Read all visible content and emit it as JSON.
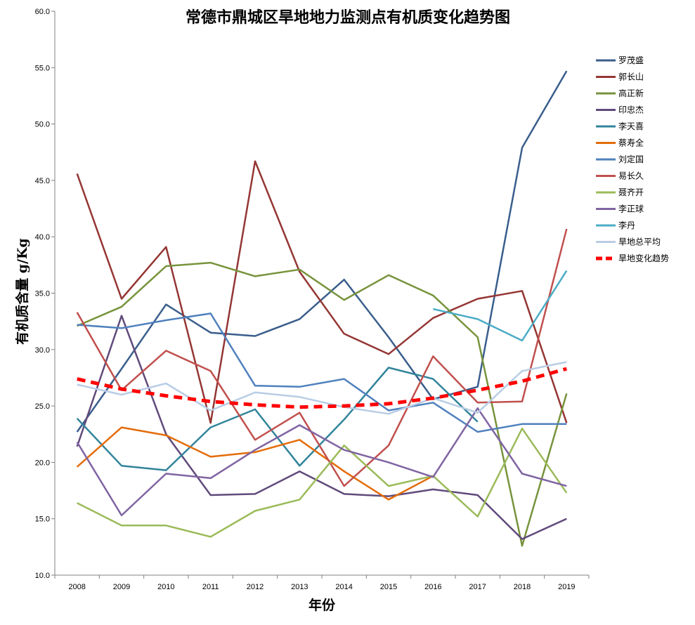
{
  "chart_data": {
    "type": "line",
    "title": "常德市鼎城区旱地地力监测点有机质变化趋势图",
    "xlabel": "年份",
    "ylabel": "有机质含量  g/Kg",
    "categories": [
      "2008",
      "2009",
      "2010",
      "2011",
      "2012",
      "2013",
      "2014",
      "2015",
      "2016",
      "2017",
      "2018",
      "2019"
    ],
    "ylim": [
      10,
      60
    ],
    "yticks": [
      "10.0",
      "15.0",
      "20.0",
      "25.0",
      "30.0",
      "35.0",
      "40.0",
      "45.0",
      "50.0",
      "55.0",
      "60.0"
    ],
    "grid": false,
    "legend_position": "right",
    "series": [
      {
        "name": "罗茂盛",
        "color": "#3A5E8C",
        "dashed": false,
        "values": [
          22.7,
          28.3,
          34.0,
          31.5,
          31.2,
          32.7,
          36.2,
          31.1,
          25.6,
          26.7,
          47.9,
          54.7
        ]
      },
      {
        "name": "郭长山",
        "color": "#943634",
        "dashed": false,
        "values": [
          45.6,
          34.5,
          39.1,
          23.5,
          46.7,
          36.9,
          31.4,
          29.6,
          32.8,
          34.5,
          35.2,
          23.5
        ]
      },
      {
        "name": "高正新",
        "color": "#77933C",
        "dashed": false,
        "values": [
          32.1,
          33.8,
          37.4,
          37.7,
          36.5,
          37.1,
          34.4,
          36.6,
          34.8,
          31.1,
          12.6,
          26.1
        ]
      },
      {
        "name": "印忠杰",
        "color": "#604A7B",
        "dashed": false,
        "values": [
          21.4,
          33.0,
          22.5,
          17.1,
          17.2,
          19.2,
          17.2,
          17.0,
          17.6,
          17.1,
          13.2,
          15.0
        ]
      },
      {
        "name": "李天喜",
        "color": "#31849B",
        "dashed": false,
        "values": [
          23.9,
          19.7,
          19.3,
          23.1,
          24.7,
          19.7,
          23.8,
          28.4,
          27.4,
          23.6,
          null,
          null
        ]
      },
      {
        "name": "蔡寿全",
        "color": "#E46C0A",
        "dashed": false,
        "values": [
          19.6,
          23.1,
          22.4,
          20.5,
          20.9,
          22.0,
          19.2,
          16.7,
          18.8,
          null,
          null,
          null
        ]
      },
      {
        "name": "刘定国",
        "color": "#4F81BD",
        "dashed": false,
        "values": [
          32.2,
          31.9,
          32.6,
          33.2,
          26.8,
          26.7,
          27.4,
          24.6,
          25.3,
          22.7,
          23.4,
          23.4
        ]
      },
      {
        "name": "易长久",
        "color": "#C0504D",
        "dashed": false,
        "values": [
          33.3,
          26.4,
          29.9,
          28.1,
          22.0,
          24.4,
          17.9,
          21.5,
          29.4,
          25.3,
          25.4,
          40.7
        ]
      },
      {
        "name": "聂齐开",
        "color": "#9BBB59",
        "dashed": false,
        "values": [
          16.4,
          14.4,
          14.4,
          13.4,
          15.7,
          16.7,
          21.5,
          17.9,
          18.8,
          15.2,
          23.0,
          17.3
        ]
      },
      {
        "name": "李正球",
        "color": "#8064A2",
        "dashed": false,
        "values": [
          21.8,
          15.3,
          19.0,
          18.6,
          21.1,
          23.3,
          21.1,
          20.0,
          18.7,
          24.8,
          19.0,
          17.9
        ]
      },
      {
        "name": "李丹",
        "color": "#4BACC6",
        "dashed": false,
        "values": [
          null,
          null,
          null,
          null,
          null,
          null,
          null,
          null,
          33.6,
          32.7,
          30.8,
          37.0
        ]
      },
      {
        "name": "旱地总平均",
        "color": "#B9CDE5",
        "dashed": false,
        "values": [
          26.9,
          26.0,
          27.0,
          24.6,
          26.2,
          25.8,
          24.9,
          24.3,
          25.7,
          24.4,
          28.1,
          28.9
        ]
      },
      {
        "name": "旱地变化趋势",
        "color": "#FF0000",
        "dashed": true,
        "values": [
          27.4,
          26.5,
          25.9,
          25.4,
          25.1,
          24.9,
          25.0,
          25.2,
          25.7,
          26.4,
          27.2,
          28.3
        ]
      }
    ]
  }
}
